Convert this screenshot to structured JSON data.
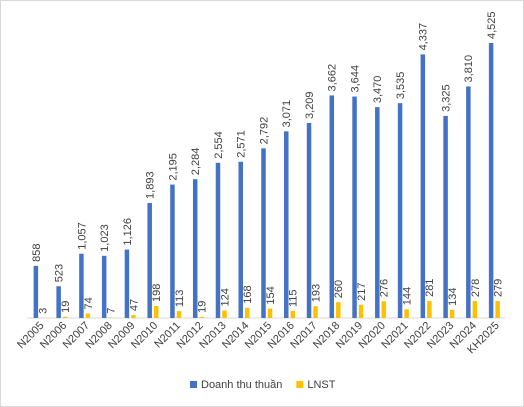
{
  "chart_data": {
    "type": "bar",
    "categories": [
      "N2005",
      "N2006",
      "N2007",
      "N2008",
      "N2009",
      "N2010",
      "N2011",
      "N2012",
      "N2013",
      "N2014",
      "N2015",
      "N2016",
      "N2017",
      "N2018",
      "N2019",
      "N2020",
      "N2021",
      "N2022",
      "N2023",
      "N2024",
      "KH2025"
    ],
    "series": [
      {
        "name": "Doanh thu thuần",
        "color": "#4472c4",
        "values": [
          858,
          523,
          1057,
          1023,
          1126,
          1893,
          2195,
          2284,
          2554,
          2571,
          2792,
          3071,
          3209,
          3662,
          3644,
          3470,
          3535,
          4337,
          3325,
          3810,
          4525
        ],
        "value_labels": [
          "858",
          "523",
          "1,057",
          "1,023",
          "1,126",
          "1,893",
          "2,195",
          "2,284",
          "2,554",
          "2,571",
          "2,792",
          "3,071",
          "3,209",
          "3,662",
          "3,644",
          "3,470",
          "3,535",
          "4,337",
          "3,325",
          "3,810",
          "4,525"
        ]
      },
      {
        "name": "LNST",
        "color": "#ffc000",
        "values": [
          3,
          19,
          74,
          7,
          47,
          198,
          113,
          19,
          124,
          168,
          154,
          115,
          193,
          260,
          217,
          276,
          144,
          281,
          134,
          278,
          279
        ]
      }
    ],
    "legend": "bottom"
  }
}
